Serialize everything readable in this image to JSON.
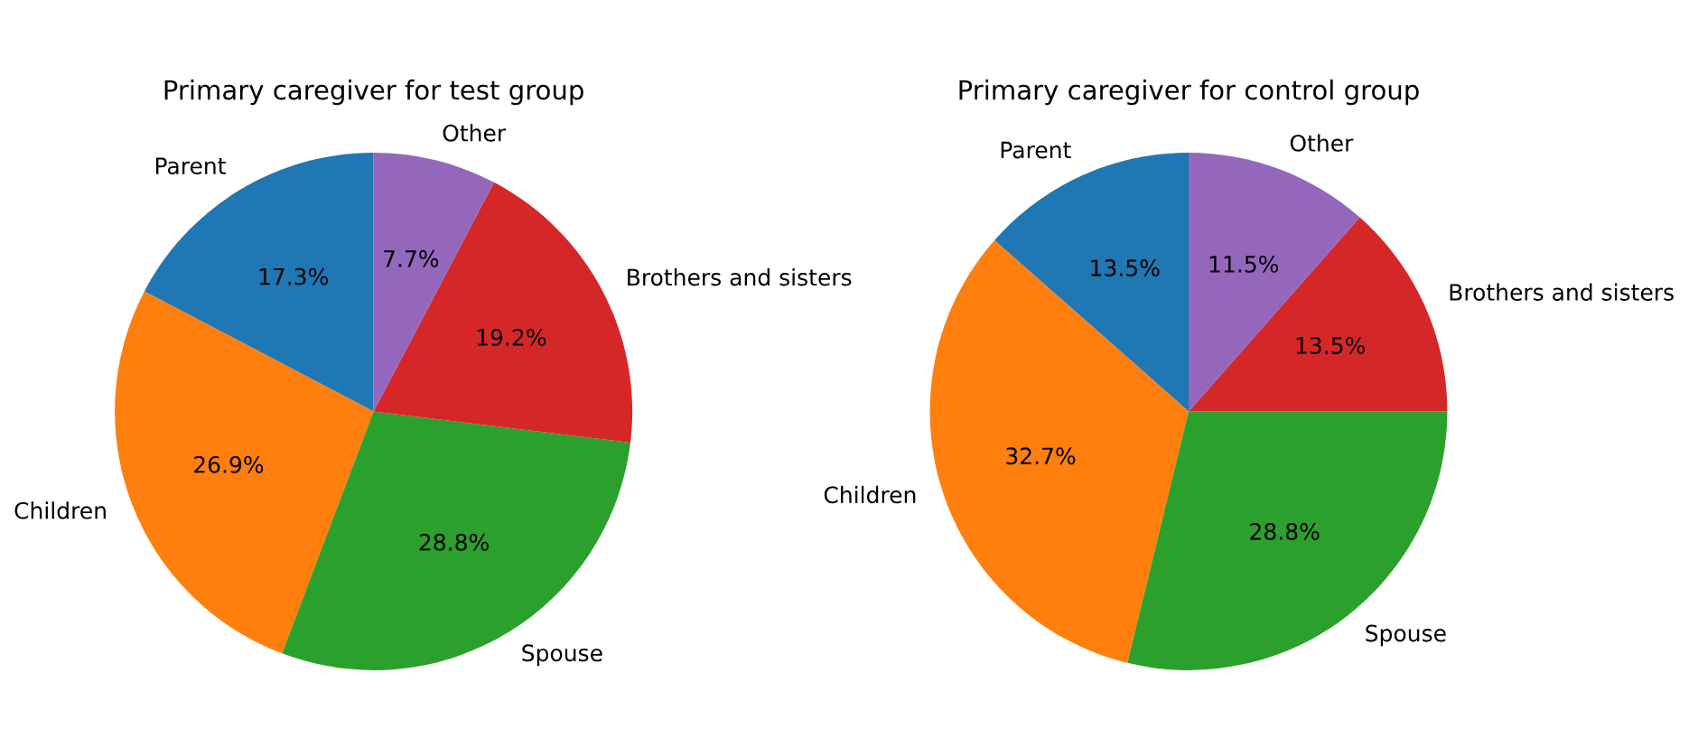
{
  "chart_data": [
    {
      "type": "pie",
      "title": "Primary caregiver for test group",
      "categories": [
        "Parent",
        "Children",
        "Spouse",
        "Brothers and sisters",
        "Other"
      ],
      "values": [
        17.3,
        26.9,
        28.8,
        19.2,
        7.7
      ],
      "value_labels": [
        "17.3%",
        "26.9%",
        "28.8%",
        "19.2%",
        "7.7%"
      ],
      "colors": [
        "#1f77b4",
        "#ff7f0e",
        "#2ca02c",
        "#d62728",
        "#9467bd"
      ]
    },
    {
      "type": "pie",
      "title": "Primary caregiver for control group",
      "categories": [
        "Parent",
        "Children",
        "Spouse",
        "Brothers and sisters",
        "Other"
      ],
      "values": [
        13.5,
        32.7,
        28.8,
        13.5,
        11.5
      ],
      "value_labels": [
        "13.5%",
        "32.7%",
        "28.8%",
        "13.5%",
        "11.5%"
      ],
      "colors": [
        "#1f77b4",
        "#ff7f0e",
        "#2ca02c",
        "#d62728",
        "#9467bd"
      ]
    }
  ]
}
